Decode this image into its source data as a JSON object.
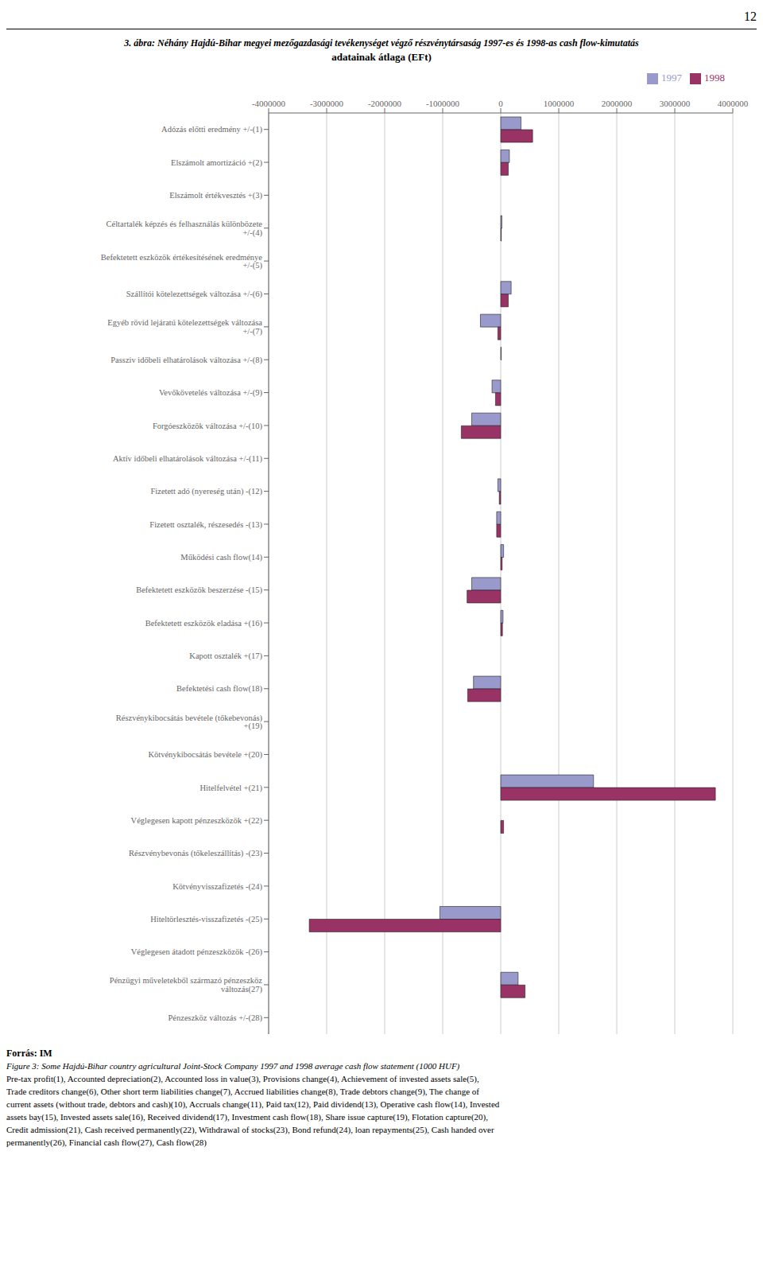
{
  "chart_data": {
    "type": "bar",
    "orientation": "horizontal",
    "title": "3. ábra: Néhány Hajdú-Bihar megyei mezőgazdasági tevékenységet végző részvénytársaság 1997-es és 1998-as cash flow-kimutatás",
    "subtitle": "adatainak átlaga (EFt)",
    "annotations": [
      "12",
      "Forrás: IM",
      "Figure 3: Some Hajdú-Bihar country agricultural Joint-Stock Company 1997 and 1998 average cash flow statement (1000 HUF)",
      "Pre-tax profit(1), Accounted depreciation(2), Accounted loss in value(3), Provisions change(4), Achievement of invested assets sale(5),",
      "Trade creditors change(6), Other short term liabilities change(7), Accrued liabilities change(8), Trade debtors change(9), The change of",
      "current assets (without trade, debtors and cash)(10), Accruals change(11), Paid tax(12), Paid dividend(13), Operative cash flow(14), Invested",
      "assets bay(15), Invested assets sale(16), Received dividend(17), Investment cash flow(18), Share issue capture(19), Flotation capture(20),",
      "Credit admission(21), Cash received permanently(22), Withdrawal of stocks(23), Bond refund(24), loan repayments(25), Cash handed over",
      "permanently(26), Financial cash flow(27), Cash flow(28)"
    ],
    "categories": [
      "Adózás előtti eredmény +/-(1)",
      "Elszámolt amortizáció +(2)",
      "Elszámolt értékvesztés +(3)",
      "Céltartalék képzés és felhasználás különbözete +/-(4)",
      "Befektetett eszközök értékesítésének eredménye +/-(5)",
      "Szállítói kötelezettségek változása +/-(6)",
      "Egyéb rövid lejáratú kötelezettségek változása +/-(7)",
      "Passziv időbeli elhatárolások változása +/-(8)",
      "Vevőkövetelés változása +/-(9)",
      "Forgóeszközök változása +/-(10)",
      "Aktív időbeli elhatárolások változása +/-(11)",
      "Fizetett adó (nyereség után) -(12)",
      "Fizetett osztalék, részesedés -(13)",
      "Működési cash flow(14)",
      "Befektetett eszközök beszerzése -(15)",
      "Befektetett eszközök eladása +(16)",
      "Kapott osztalék +(17)",
      "Befektetési cash flow(18)",
      "Részvénykibocsátás bevétele (tőkebevonás) +(19)",
      "Kötvénykibocsátás bevétele +(20)",
      "Hitelfelvétel +(21)",
      "Véglegesen kapott pénzeszközök +(22)",
      "Részvénybevonás (tőkeleszállítás) -(23)",
      "Kötvényvisszafizetés -(24)",
      "Hiteltörlesztés-visszafizetés -(25)",
      "Véglegesen átadott pénzeszközök -(26)",
      "Pénzügyi műveletekből származó pénzeszköz változás(27)",
      "Pénzeszköz változás +/-(28)"
    ],
    "series": [
      {
        "name": "1997",
        "color": "#9999cc",
        "values": [
          350000,
          150000,
          0,
          20000,
          0,
          180000,
          -350000,
          10000,
          -150000,
          -500000,
          0,
          -50000,
          -70000,
          50000,
          -500000,
          40000,
          0,
          -470000,
          0,
          0,
          1600000,
          0,
          0,
          0,
          -1050000,
          0,
          300000,
          0
        ]
      },
      {
        "name": "1998",
        "color": "#993366",
        "values": [
          550000,
          130000,
          0,
          10000,
          0,
          130000,
          -50000,
          0,
          -90000,
          -680000,
          0,
          -25000,
          -70000,
          25000,
          -580000,
          30000,
          0,
          -570000,
          0,
          0,
          3700000,
          50000,
          0,
          0,
          -3300000,
          0,
          420000,
          0
        ]
      }
    ],
    "xlim": [
      -4000000,
      4000000
    ],
    "xticks": [
      -4000000,
      -3000000,
      -2000000,
      -1000000,
      0,
      1000000,
      2000000,
      3000000,
      4000000
    ],
    "grid": true,
    "legend": "upper right"
  }
}
